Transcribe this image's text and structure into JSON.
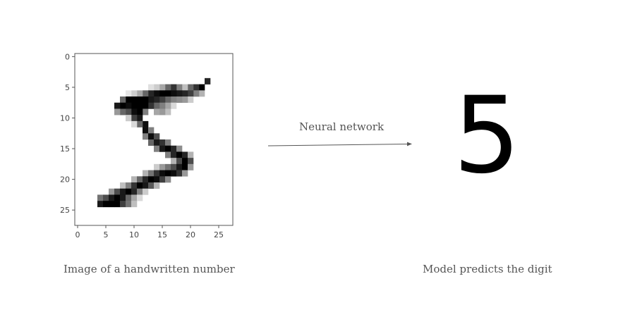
{
  "image_panel": {
    "caption": "Image of a handwritten number",
    "x_ticks": [
      "0",
      "5",
      "10",
      "15",
      "20",
      "25"
    ],
    "y_ticks": [
      "0",
      "5",
      "10",
      "15",
      "20",
      "25"
    ],
    "grid_size": 28,
    "pixels": [
      [
        4,
        23,
        0.85
      ],
      [
        5,
        22,
        1
      ],
      [
        5,
        21,
        0.8
      ],
      [
        5,
        20,
        0.6
      ],
      [
        5,
        19,
        0.25
      ],
      [
        5,
        18,
        0.5
      ],
      [
        5,
        17,
        0.8
      ],
      [
        5,
        16,
        0.6
      ],
      [
        5,
        15,
        0.35
      ],
      [
        5,
        14,
        0.2
      ],
      [
        5,
        13,
        0.12
      ],
      [
        6,
        22,
        0.3
      ],
      [
        6,
        21,
        0.5
      ],
      [
        6,
        20,
        0.75
      ],
      [
        6,
        19,
        0.85
      ],
      [
        6,
        18,
        0.9
      ],
      [
        6,
        17,
        0.95
      ],
      [
        6,
        16,
        1
      ],
      [
        6,
        15,
        1
      ],
      [
        6,
        14,
        0.95
      ],
      [
        6,
        13,
        0.85
      ],
      [
        6,
        12,
        0.6
      ],
      [
        6,
        11,
        0.35
      ],
      [
        6,
        10,
        0.2
      ],
      [
        6,
        9,
        0.1
      ],
      [
        7,
        20,
        0.2
      ],
      [
        7,
        19,
        0.4
      ],
      [
        7,
        18,
        0.45
      ],
      [
        7,
        17,
        0.5
      ],
      [
        7,
        16,
        0.6
      ],
      [
        7,
        15,
        0.75
      ],
      [
        7,
        14,
        0.85
      ],
      [
        7,
        13,
        0.9
      ],
      [
        7,
        12,
        1
      ],
      [
        7,
        11,
        1
      ],
      [
        7,
        10,
        1
      ],
      [
        7,
        9,
        1
      ],
      [
        7,
        8,
        0.6
      ],
      [
        8,
        17,
        0.15
      ],
      [
        8,
        16,
        0.35
      ],
      [
        8,
        15,
        0.5
      ],
      [
        8,
        14,
        0.6
      ],
      [
        8,
        13,
        0.8
      ],
      [
        8,
        12,
        1
      ],
      [
        8,
        11,
        1
      ],
      [
        8,
        10,
        1
      ],
      [
        8,
        9,
        0.95
      ],
      [
        8,
        8,
        1
      ],
      [
        8,
        7,
        0.9
      ],
      [
        9,
        16,
        0.25
      ],
      [
        9,
        15,
        0.4
      ],
      [
        9,
        14,
        0.35
      ],
      [
        9,
        12,
        0.5
      ],
      [
        9,
        11,
        1
      ],
      [
        9,
        10,
        0.95
      ],
      [
        9,
        9,
        0.7
      ],
      [
        9,
        8,
        0.6
      ],
      [
        9,
        7,
        0.4
      ],
      [
        10,
        11,
        0.9
      ],
      [
        10,
        10,
        0.75
      ],
      [
        10,
        9,
        0.2
      ],
      [
        11,
        12,
        0.95
      ],
      [
        11,
        11,
        0.6
      ],
      [
        11,
        10,
        0.15
      ],
      [
        12,
        12,
        0.95
      ],
      [
        12,
        13,
        0.5
      ],
      [
        13,
        12,
        0.5
      ],
      [
        13,
        13,
        0.95
      ],
      [
        13,
        14,
        0.7
      ],
      [
        14,
        13,
        0.6
      ],
      [
        14,
        14,
        0.9
      ],
      [
        14,
        15,
        0.8
      ],
      [
        14,
        16,
        0.5
      ],
      [
        15,
        14,
        0.5
      ],
      [
        15,
        15,
        0.9
      ],
      [
        15,
        16,
        1
      ],
      [
        15,
        17,
        0.85
      ],
      [
        15,
        18,
        0.45
      ],
      [
        16,
        16,
        0.5
      ],
      [
        16,
        17,
        0.85
      ],
      [
        16,
        18,
        1
      ],
      [
        16,
        19,
        0.85
      ],
      [
        16,
        20,
        0.3
      ],
      [
        17,
        17,
        0.3
      ],
      [
        17,
        18,
        0.7
      ],
      [
        17,
        19,
        1
      ],
      [
        17,
        20,
        0.7
      ],
      [
        18,
        14,
        0.2
      ],
      [
        18,
        15,
        0.4
      ],
      [
        18,
        16,
        0.55
      ],
      [
        18,
        17,
        0.7
      ],
      [
        18,
        18,
        0.9
      ],
      [
        18,
        19,
        1
      ],
      [
        18,
        20,
        0.4
      ],
      [
        19,
        12,
        0.3
      ],
      [
        19,
        13,
        0.55
      ],
      [
        19,
        14,
        0.8
      ],
      [
        19,
        15,
        0.95
      ],
      [
        19,
        16,
        1
      ],
      [
        19,
        17,
        0.95
      ],
      [
        19,
        18,
        0.8
      ],
      [
        19,
        19,
        0.4
      ],
      [
        20,
        10,
        0.3
      ],
      [
        20,
        11,
        0.6
      ],
      [
        20,
        12,
        0.85
      ],
      [
        20,
        13,
        1
      ],
      [
        20,
        14,
        0.95
      ],
      [
        20,
        15,
        0.75
      ],
      [
        20,
        16,
        0.45
      ],
      [
        21,
        8,
        0.25
      ],
      [
        21,
        9,
        0.5
      ],
      [
        21,
        10,
        0.8
      ],
      [
        21,
        11,
        1
      ],
      [
        21,
        12,
        0.9
      ],
      [
        21,
        13,
        0.65
      ],
      [
        21,
        14,
        0.3
      ],
      [
        22,
        6,
        0.4
      ],
      [
        22,
        7,
        0.7
      ],
      [
        22,
        8,
        0.9
      ],
      [
        22,
        9,
        1
      ],
      [
        22,
        10,
        0.85
      ],
      [
        22,
        11,
        0.5
      ],
      [
        22,
        12,
        0.2
      ],
      [
        23,
        4,
        0.55
      ],
      [
        23,
        5,
        0.7
      ],
      [
        23,
        6,
        0.9
      ],
      [
        23,
        7,
        1
      ],
      [
        23,
        8,
        0.9
      ],
      [
        23,
        9,
        0.6
      ],
      [
        23,
        10,
        0.35
      ],
      [
        23,
        11,
        0.15
      ],
      [
        24,
        4,
        0.9
      ],
      [
        24,
        5,
        1
      ],
      [
        24,
        6,
        1
      ],
      [
        24,
        7,
        1
      ],
      [
        24,
        8,
        0.75
      ],
      [
        24,
        9,
        0.55
      ],
      [
        24,
        10,
        0.25
      ]
    ]
  },
  "arrow": {
    "label": "Neural network"
  },
  "prediction": {
    "digit": "5",
    "caption": "Model predicts the digit"
  }
}
